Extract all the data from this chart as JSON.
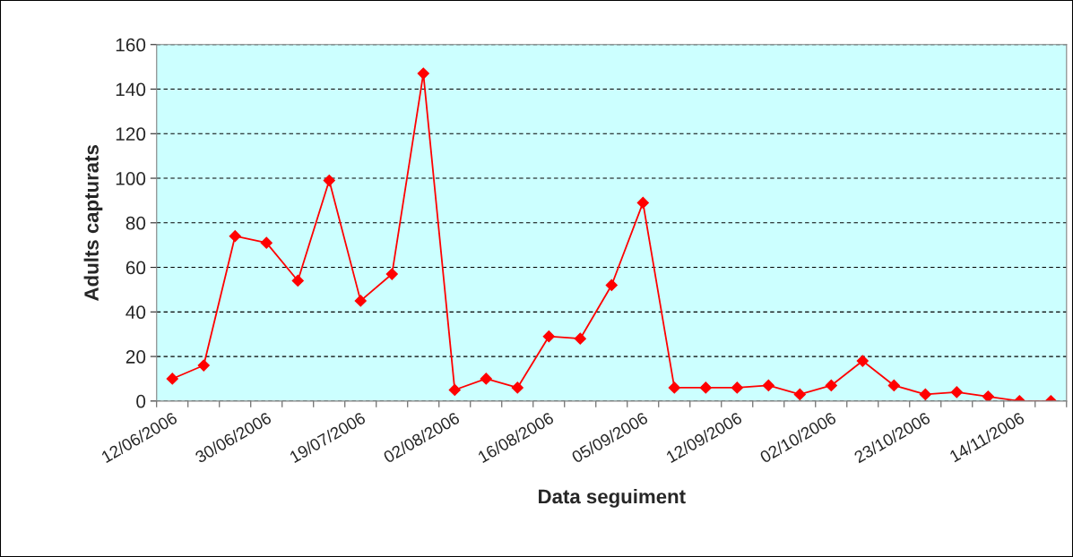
{
  "chart_data": {
    "type": "line",
    "xlabel": "Data seguiment",
    "ylabel": "Adults capturats",
    "categories": [
      "12/06/2006",
      null,
      null,
      "30/06/2006",
      null,
      null,
      "19/07/2006",
      null,
      null,
      "02/08/2006",
      null,
      null,
      "16/08/2006",
      null,
      null,
      "05/09/2006",
      null,
      null,
      "12/09/2006",
      null,
      null,
      "02/10/2006",
      null,
      null,
      "23/10/2006",
      null,
      null,
      "14/11/2006",
      null
    ],
    "series": [
      {
        "color": "#ff0000",
        "values": [
          10,
          16,
          74,
          71,
          54,
          99,
          45,
          57,
          147,
          5,
          10,
          6,
          29,
          28,
          52,
          89,
          6,
          6,
          6,
          7,
          3,
          7,
          18,
          7,
          3,
          4,
          2,
          0,
          0
        ]
      }
    ],
    "ylim": [
      0,
      160
    ],
    "yticks": [
      0,
      20,
      40,
      60,
      80,
      100,
      120,
      140,
      160
    ],
    "grid": "y",
    "marker": "diamond",
    "line_style": "solid",
    "legend": false
  }
}
